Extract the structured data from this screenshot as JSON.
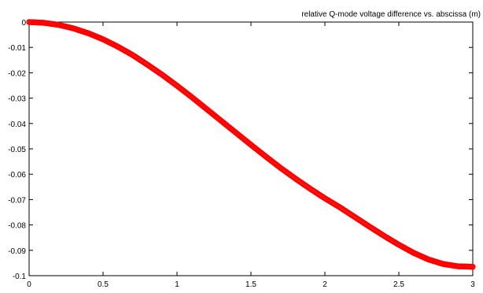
{
  "chart_data": {
    "type": "scatter",
    "title": "relative Q-mode voltage difference vs. abscissa (m)",
    "xlabel": "",
    "ylabel": "",
    "xlim": [
      0,
      3
    ],
    "ylim": [
      -0.1,
      0
    ],
    "grid": false,
    "x_ticks": [
      {
        "value": 0,
        "label": "0"
      },
      {
        "value": 0.5,
        "label": "0.5"
      },
      {
        "value": 1,
        "label": "1"
      },
      {
        "value": 1.5,
        "label": "1.5"
      },
      {
        "value": 2,
        "label": "2"
      },
      {
        "value": 2.5,
        "label": "2.5"
      },
      {
        "value": 3,
        "label": "3"
      }
    ],
    "y_ticks": [
      {
        "value": 0,
        "label": "0"
      },
      {
        "value": -0.01,
        "label": "-0.01"
      },
      {
        "value": -0.02,
        "label": "-0.02"
      },
      {
        "value": -0.03,
        "label": "-0.03"
      },
      {
        "value": -0.04,
        "label": "-0.04"
      },
      {
        "value": -0.05,
        "label": "-0.05"
      },
      {
        "value": -0.06,
        "label": "-0.06"
      },
      {
        "value": -0.07,
        "label": "-0.07"
      },
      {
        "value": -0.08,
        "label": "-0.08"
      },
      {
        "value": -0.09,
        "label": "-0.09"
      },
      {
        "value": -0.1,
        "label": "-0.1"
      }
    ],
    "series": [
      {
        "color": "#ff0000",
        "marker": "o",
        "x": [
          0,
          0.1,
          0.2,
          0.3,
          0.4,
          0.5,
          0.6,
          0.7,
          0.8,
          0.9,
          1.0,
          1.1,
          1.2,
          1.3,
          1.4,
          1.5,
          1.6,
          1.7,
          1.8,
          1.9,
          2.0,
          2.1,
          2.2,
          2.3,
          2.4,
          2.5,
          2.6,
          2.7,
          2.8,
          2.9,
          3.0
        ],
        "y": [
          0,
          -0.0003,
          -0.0011,
          -0.0025,
          -0.0044,
          -0.0068,
          -0.0097,
          -0.013,
          -0.0168,
          -0.0208,
          -0.0251,
          -0.0296,
          -0.0343,
          -0.039,
          -0.0437,
          -0.0484,
          -0.053,
          -0.0575,
          -0.0617,
          -0.0657,
          -0.0695,
          -0.073,
          -0.0768,
          -0.0806,
          -0.0843,
          -0.0878,
          -0.091,
          -0.0936,
          -0.0954,
          -0.0963,
          -0.0965
        ]
      }
    ]
  }
}
